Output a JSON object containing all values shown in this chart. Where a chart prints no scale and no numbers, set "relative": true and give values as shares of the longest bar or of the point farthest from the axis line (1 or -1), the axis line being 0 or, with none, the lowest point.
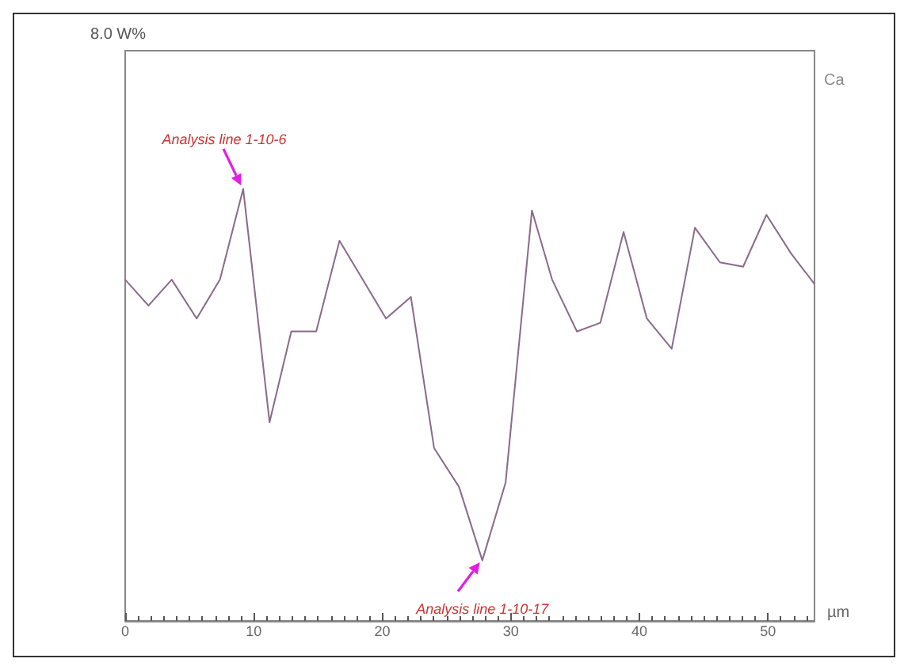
{
  "chart_data": {
    "type": "line",
    "relative": true,
    "xlabel": "µm",
    "x": [
      0,
      1.81,
      3.62,
      5.56,
      7.37,
      9.18,
      11.23,
      12.92,
      14.86,
      16.67,
      18.48,
      20.29,
      22.22,
      24.03,
      25.97,
      27.78,
      29.59,
      31.64,
      33.21,
      35.14,
      36.96,
      38.77,
      40.58,
      42.51,
      44.32,
      46.26,
      48.07,
      49.88,
      51.81,
      53.62
    ],
    "series": [
      {
        "name": "Ca",
        "color": "#8a6a8a",
        "values": [
          0.79,
          0.73,
          0.79,
          0.7,
          0.79,
          1.0,
          0.46,
          0.67,
          0.67,
          0.88,
          0.79,
          0.7,
          0.75,
          0.4,
          0.31,
          0.14,
          0.32,
          0.95,
          0.79,
          0.67,
          0.69,
          0.9,
          0.7,
          0.63,
          0.91,
          0.83,
          0.82,
          0.94,
          0.85,
          0.78
        ]
      }
    ],
    "xlim": [
      0,
      53.62
    ],
    "xticks": [
      0,
      10,
      20,
      30,
      40,
      50
    ],
    "annotations": [
      "8.0 W%",
      {
        "text": "Analysis line 1-10-6",
        "x": 9.18,
        "y": 1.0
      },
      {
        "text": "Analysis line 1-10-17",
        "x": 27.78,
        "y": 0.14
      }
    ],
    "grid": false,
    "legend": false,
    "marker": "none",
    "line_style": "solid"
  }
}
